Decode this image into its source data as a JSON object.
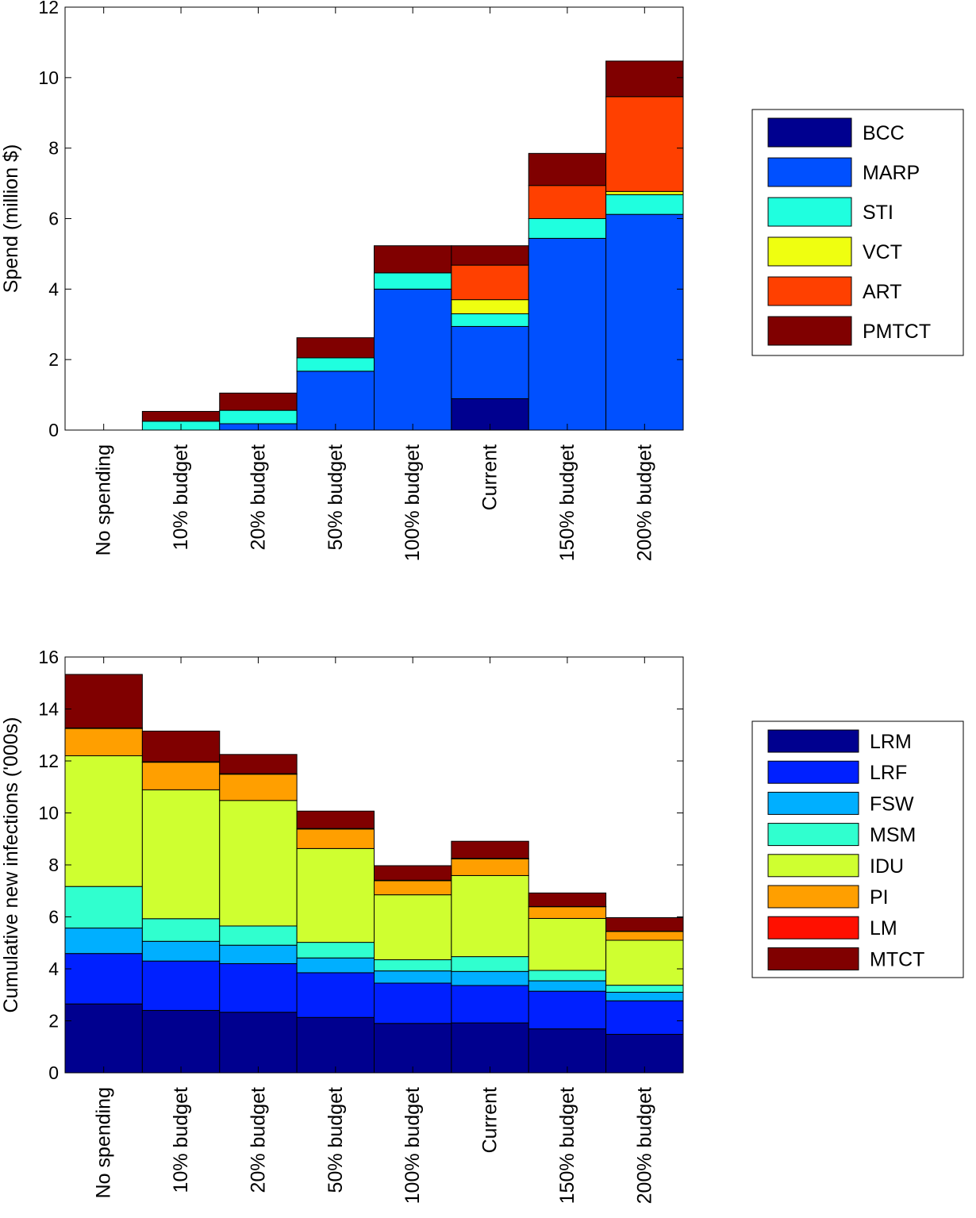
{
  "chart_data": [
    {
      "type": "bar",
      "stacked": true,
      "categories": [
        "No spending",
        "10% budget",
        "20% budget",
        "50% budget",
        "100% budget",
        "Current",
        "150% budget",
        "200% budget"
      ],
      "ylabel": "Spend (million $)",
      "ylim": [
        0,
        12
      ],
      "yticks": [
        0,
        2,
        4,
        6,
        8,
        10,
        12
      ],
      "grid": false,
      "legend_position": "right",
      "series": [
        {
          "name": "BCC",
          "color": "#00008f",
          "values": [
            0,
            0,
            0,
            0,
            0,
            0.89,
            0,
            0
          ]
        },
        {
          "name": "MARP",
          "color": "#0050ff",
          "values": [
            0,
            0,
            0.18,
            1.67,
            4.0,
            2.05,
            5.44,
            6.12
          ]
        },
        {
          "name": "STI",
          "color": "#1fffdf",
          "values": [
            0,
            0.25,
            0.38,
            0.38,
            0.46,
            0.36,
            0.56,
            0.56
          ]
        },
        {
          "name": "VCT",
          "color": "#efff10",
          "values": [
            0,
            0,
            0,
            0,
            0,
            0.4,
            0,
            0.09
          ]
        },
        {
          "name": "ART",
          "color": "#ff4000",
          "values": [
            0,
            0,
            0,
            0,
            0,
            0.98,
            0.94,
            2.69
          ]
        },
        {
          "name": "PMTCT",
          "color": "#800000",
          "values": [
            0,
            0.28,
            0.49,
            0.57,
            0.77,
            0.55,
            0.91,
            1.01
          ]
        }
      ]
    },
    {
      "type": "bar",
      "stacked": true,
      "categories": [
        "No spending",
        "10% budget",
        "20% budget",
        "50% budget",
        "100% budget",
        "Current",
        "150% budget",
        "200% budget"
      ],
      "ylabel": "Cumulative new infections ('000s)",
      "ylim": [
        0,
        16
      ],
      "yticks": [
        0,
        2,
        4,
        6,
        8,
        10,
        12,
        14,
        16
      ],
      "grid": false,
      "legend_position": "right",
      "series": [
        {
          "name": "LRM",
          "color": "#00008f",
          "values": [
            2.65,
            2.4,
            2.33,
            2.13,
            1.9,
            1.92,
            1.69,
            1.48
          ]
        },
        {
          "name": "LRF",
          "color": "#0020ff",
          "values": [
            1.94,
            1.9,
            1.87,
            1.72,
            1.55,
            1.44,
            1.45,
            1.29
          ]
        },
        {
          "name": "FSW",
          "color": "#00afff",
          "values": [
            0.98,
            0.76,
            0.71,
            0.57,
            0.47,
            0.54,
            0.4,
            0.33
          ]
        },
        {
          "name": "MSM",
          "color": "#30ffcf",
          "values": [
            1.6,
            0.87,
            0.74,
            0.6,
            0.43,
            0.57,
            0.4,
            0.27
          ]
        },
        {
          "name": "IDU",
          "color": "#cfff30",
          "values": [
            5.03,
            4.96,
            4.83,
            3.61,
            2.5,
            3.12,
            2.0,
            1.73
          ]
        },
        {
          "name": "PI",
          "color": "#ff9f00",
          "values": [
            1.05,
            1.06,
            1.01,
            0.75,
            0.54,
            0.64,
            0.45,
            0.34
          ]
        },
        {
          "name": "LM",
          "color": "#ff1000",
          "values": [
            0.02,
            0.02,
            0.02,
            0.02,
            0.02,
            0.02,
            0.01,
            0.01
          ]
        },
        {
          "name": "MTCT",
          "color": "#800000",
          "values": [
            2.06,
            1.18,
            0.74,
            0.67,
            0.56,
            0.66,
            0.52,
            0.52
          ]
        }
      ]
    }
  ]
}
